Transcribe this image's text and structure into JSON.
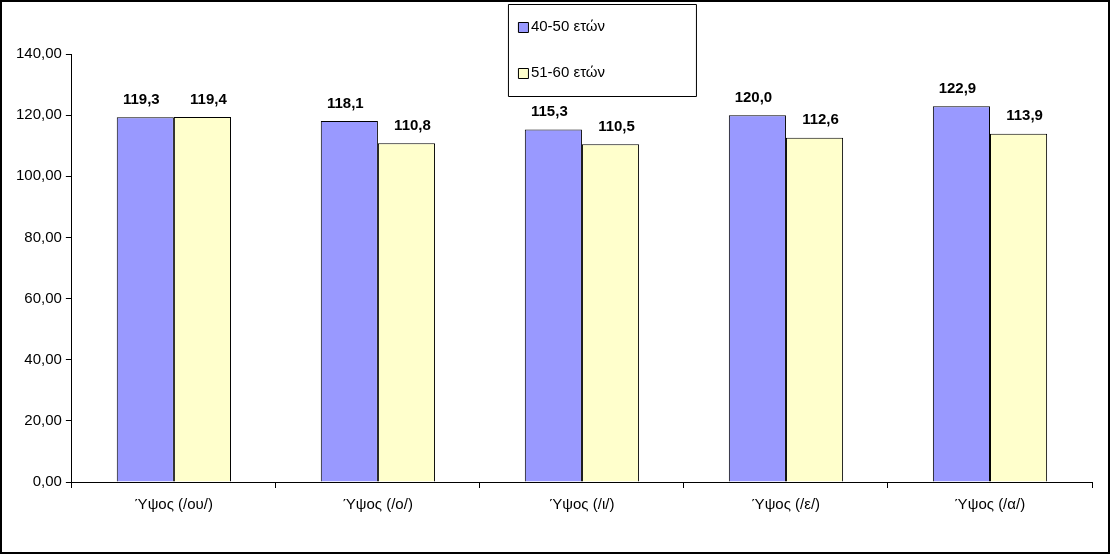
{
  "chart_data": {
    "type": "bar",
    "categories": [
      "Ύψος (/ου/)",
      "Ύψος (/ο/)",
      "Ύψος (/ι/)",
      "Ύψος (/ε/)",
      "Ύψος (/α/)"
    ],
    "series": [
      {
        "name": "40-50 ετών",
        "color": "#9999ff",
        "values": [
          119.3,
          118.1,
          115.3,
          120.0,
          122.9
        ],
        "value_labels": [
          "119,3",
          "118,1",
          "115,3",
          "120,0",
          "122,9"
        ]
      },
      {
        "name": "51-60 ετών",
        "color": "#ffffcc",
        "values": [
          119.4,
          110.8,
          110.5,
          112.6,
          113.9
        ],
        "value_labels": [
          "119,4",
          "110,8",
          "110,5",
          "112,6",
          "113,9"
        ]
      }
    ],
    "ylim": [
      0,
      140
    ],
    "yticks": [
      {
        "value": 0,
        "label": "0,00"
      },
      {
        "value": 20,
        "label": "20,00"
      },
      {
        "value": 40,
        "label": "40,00"
      },
      {
        "value": 60,
        "label": "60,00"
      },
      {
        "value": 80,
        "label": "80,00"
      },
      {
        "value": 100,
        "label": "100,00"
      },
      {
        "value": 120,
        "label": "120,00"
      },
      {
        "value": 140,
        "label": "140,00"
      }
    ],
    "grid": false,
    "legend": "top"
  }
}
